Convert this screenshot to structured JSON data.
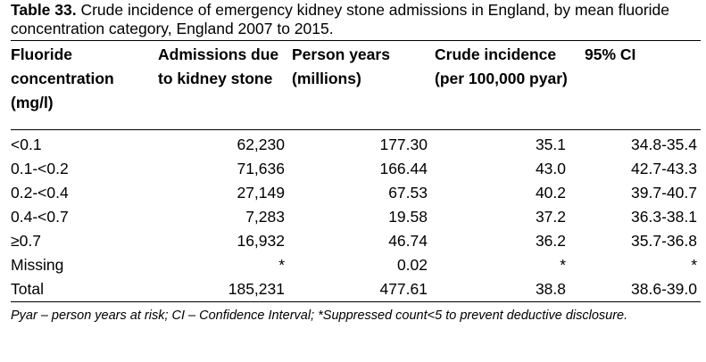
{
  "caption": {
    "label": "Table 33.",
    "text": " Crude incidence of emergency kidney stone admissions in England, by mean fluoride concentration category, England 2007 to 2015."
  },
  "table": {
    "headers": [
      "Fluoride concentration (mg/l)",
      "Admissions due to kidney stone",
      "Person years (millions)",
      "Crude incidence (per 100,000 pyar)",
      "95% CI"
    ],
    "rows": [
      [
        "<0.1",
        "62,230",
        "177.30",
        "35.1",
        "34.8-35.4"
      ],
      [
        "0.1-<0.2",
        "71,636",
        "166.44",
        "43.0",
        "42.7-43.3"
      ],
      [
        "0.2-<0.4",
        "27,149",
        "67.53",
        "40.2",
        "39.7-40.7"
      ],
      [
        "0.4-<0.7",
        "7,283",
        "19.58",
        "37.2",
        "36.3-38.1"
      ],
      [
        "≥0.7",
        "16,932",
        "46.74",
        "36.2",
        "35.7-36.8"
      ],
      [
        "Missing",
        "*",
        "0.02",
        "*",
        "*"
      ],
      [
        "Total",
        "185,231",
        "477.61",
        "38.8",
        "38.6-39.0"
      ]
    ]
  },
  "footnote": "Pyar – person years at risk; CI – Confidence Interval; *Suppressed count<5 to prevent deductive disclosure."
}
